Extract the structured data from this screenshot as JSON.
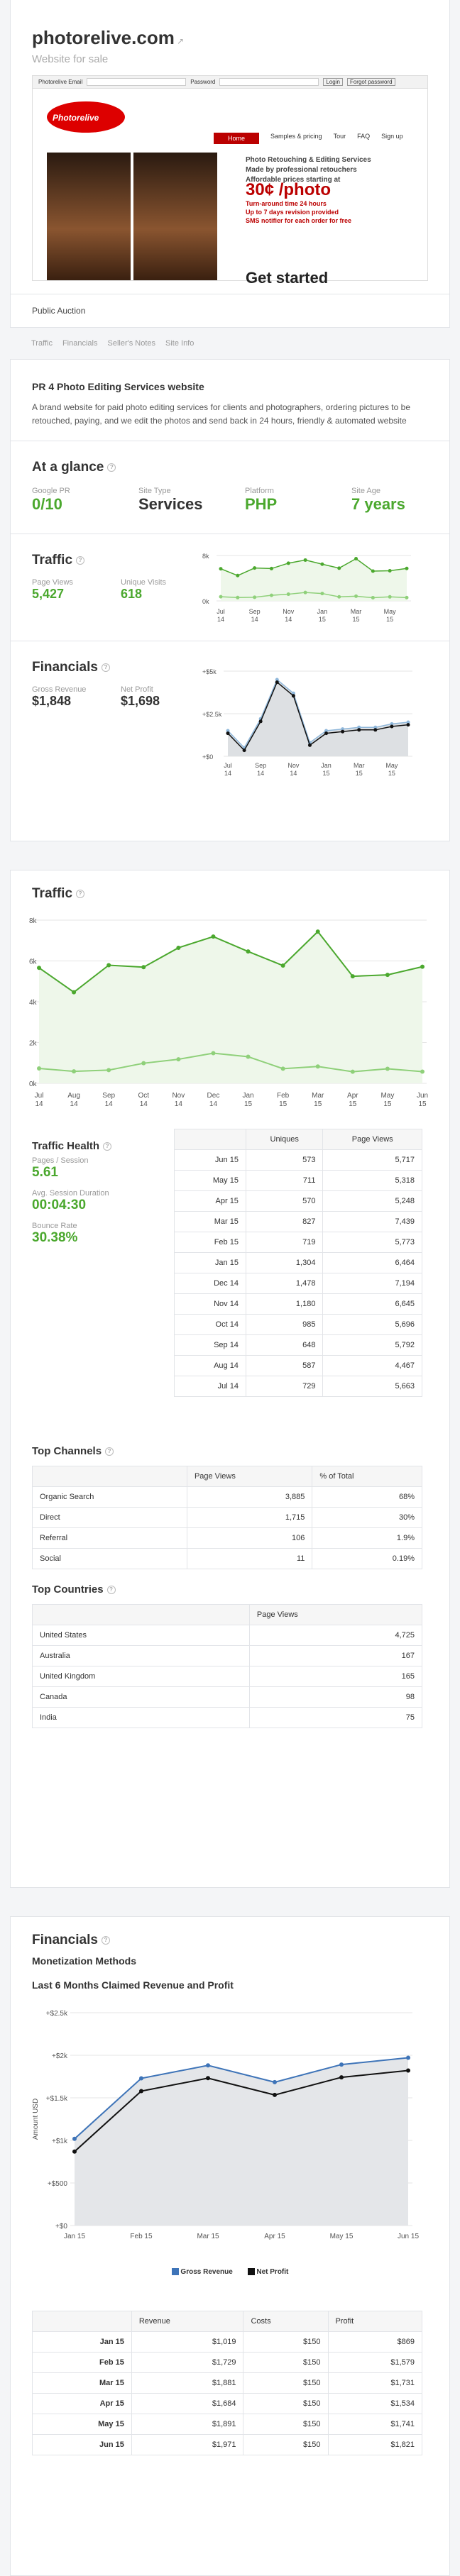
{
  "header": {
    "title": "photorelive.com",
    "subtitle": "Website for sale"
  },
  "preview": {
    "topbar_fields": [
      "Photorelive Email",
      "Password",
      "Login",
      "Forgot password"
    ],
    "logo": "Photorelive",
    "nav": [
      "Home",
      "Samples & pricing",
      "Tour",
      "FAQ",
      "Sign up"
    ],
    "headline_lines": [
      "Photo Retouching & Editing Services",
      "Made by professional retouchers",
      "Affordable prices starting at"
    ],
    "price": "30¢ /photo",
    "bullets": [
      "Turn-around time 24 hours",
      "Up to 7 days revision provided",
      "SMS notifier for each order for free"
    ],
    "get_started": "Get started"
  },
  "auction_label": "Public Auction",
  "tabs": [
    "Traffic",
    "Financials",
    "Seller's Notes",
    "Site Info"
  ],
  "description": {
    "title": "PR 4 Photo Editing Services website",
    "text": "A brand website for paid photo editing services for clients and photographers, ordering pictures to be retouched, paying, and we edit the photos and send back in 24 hours, friendly & automated website"
  },
  "glance": {
    "title": "At a glance",
    "items": [
      {
        "label": "Google PR",
        "value": "0/10"
      },
      {
        "label": "Site Type",
        "value": "Services"
      },
      {
        "label": "Platform",
        "value": "PHP"
      },
      {
        "label": "Site Age",
        "value": "7 years"
      }
    ]
  },
  "traffic_summary": {
    "title": "Traffic",
    "page_views_label": "Page Views",
    "page_views": "5,427",
    "unique_label": "Unique Visits",
    "unique": "618",
    "ytick_top": "8k",
    "ytick_bottom": "0k"
  },
  "fin_summary": {
    "title": "Financials",
    "gross_label": "Gross Revenue",
    "gross": "$1,848",
    "net_label": "Net Profit",
    "net": "$1,698",
    "yticks": [
      "+$5k",
      "+$2.5k",
      "+$0"
    ]
  },
  "x_months": [
    [
      "Jul",
      "14"
    ],
    [
      "Sep",
      "14"
    ],
    [
      "Nov",
      "14"
    ],
    [
      "Jan",
      "15"
    ],
    [
      "Mar",
      "15"
    ],
    [
      "May",
      "15"
    ]
  ],
  "x_months_full": [
    [
      "Jul",
      "14"
    ],
    [
      "Aug",
      "14"
    ],
    [
      "Sep",
      "14"
    ],
    [
      "Oct",
      "14"
    ],
    [
      "Nov",
      "14"
    ],
    [
      "Dec",
      "14"
    ],
    [
      "Jan",
      "15"
    ],
    [
      "Feb",
      "15"
    ],
    [
      "Mar",
      "15"
    ],
    [
      "Apr",
      "15"
    ],
    [
      "May",
      "15"
    ],
    [
      "Jun",
      "15"
    ]
  ],
  "traffic": {
    "title": "Traffic",
    "yticks": [
      "8k",
      "6k",
      "4k",
      "2k",
      "0k"
    ],
    "health_title": "Traffic Health",
    "pps_label": "Pages / Session",
    "pps": "5.61",
    "asd_label": "Avg. Session Duration",
    "asd": "00:04:30",
    "bounce_label": "Bounce Rate",
    "bounce": "30.38%",
    "table_headers": [
      "",
      "Uniques",
      "Page Views"
    ],
    "rows": [
      [
        "Jun 15",
        "573",
        "5,717"
      ],
      [
        "May 15",
        "711",
        "5,318"
      ],
      [
        "Apr 15",
        "570",
        "5,248"
      ],
      [
        "Mar 15",
        "827",
        "7,439"
      ],
      [
        "Feb 15",
        "719",
        "5,773"
      ],
      [
        "Jan 15",
        "1,304",
        "6,464"
      ],
      [
        "Dec 14",
        "1,478",
        "7,194"
      ],
      [
        "Nov 14",
        "1,180",
        "6,645"
      ],
      [
        "Oct 14",
        "985",
        "5,696"
      ],
      [
        "Sep 14",
        "648",
        "5,792"
      ],
      [
        "Aug 14",
        "587",
        "4,467"
      ],
      [
        "Jul 14",
        "729",
        "5,663"
      ]
    ]
  },
  "channels": {
    "title": "Top Channels",
    "headers": [
      "",
      "Page Views",
      "% of Total"
    ],
    "rows": [
      [
        "Organic Search",
        "3,885",
        "68%"
      ],
      [
        "Direct",
        "1,715",
        "30%"
      ],
      [
        "Referral",
        "106",
        "1.9%"
      ],
      [
        "Social",
        "11",
        "0.19%"
      ]
    ]
  },
  "countries": {
    "title": "Top Countries",
    "headers": [
      "",
      "Page Views"
    ],
    "rows": [
      [
        "United States",
        "4,725"
      ],
      [
        "Australia",
        "167"
      ],
      [
        "United Kingdom",
        "165"
      ],
      [
        "Canada",
        "98"
      ],
      [
        "India",
        "75"
      ]
    ]
  },
  "financials": {
    "title": "Financials",
    "monetization": "Monetization Methods",
    "chart_title": "Last 6 Months Claimed Revenue and Profit",
    "ylabel": "Amount USD",
    "yticks": [
      "+$2.5k",
      "+$2k",
      "+$1.5k",
      "+$1k",
      "+$500",
      "+$0"
    ],
    "xticks": [
      "Jan 15",
      "Feb 15",
      "Mar 15",
      "Apr 15",
      "May 15",
      "Jun 15"
    ],
    "legend": [
      "Gross Revenue",
      "Net Profit"
    ],
    "headers": [
      "",
      "Revenue",
      "Costs",
      "Profit"
    ],
    "rows": [
      [
        "Jan 15",
        "$1,019",
        "$150",
        "$869"
      ],
      [
        "Feb 15",
        "$1,729",
        "$150",
        "$1,579"
      ],
      [
        "Mar 15",
        "$1,881",
        "$150",
        "$1,731"
      ],
      [
        "Apr 15",
        "$1,684",
        "$150",
        "$1,534"
      ],
      [
        "May 15",
        "$1,891",
        "$150",
        "$1,741"
      ],
      [
        "Jun 15",
        "$1,971",
        "$150",
        "$1,821"
      ]
    ]
  },
  "chart_data": [
    {
      "type": "line",
      "title": "",
      "x": [
        "Jul 14",
        "Aug 14",
        "Sep 14",
        "Oct 14",
        "Nov 14",
        "Dec 14",
        "Jan 15",
        "Feb 15",
        "Mar 15",
        "Apr 15",
        "May 15",
        "Jun 15"
      ],
      "ylim": [
        0,
        8000
      ],
      "series": [
        {
          "name": "Page Views",
          "values": [
            5663,
            4467,
            5792,
            5696,
            6645,
            7194,
            6464,
            5773,
            7439,
            5248,
            5318,
            5717
          ]
        },
        {
          "name": "Uniques",
          "values": [
            729,
            587,
            648,
            985,
            1180,
            1478,
            1304,
            719,
            827,
            570,
            711,
            573
          ]
        }
      ]
    },
    {
      "type": "line",
      "title": "",
      "x": [
        "Jul 14",
        "Aug 14",
        "Sep 14",
        "Oct 14",
        "Nov 14",
        "Dec 14",
        "Jan 15",
        "Feb 15",
        "Mar 15",
        "Apr 15",
        "May 15",
        "Jun 15"
      ],
      "ylim": [
        0,
        5000
      ],
      "series": [
        {
          "name": "Gross Revenue",
          "values": [
            1500,
            500,
            2200,
            4500,
            3700,
            800,
            1500,
            1600,
            1700,
            1700,
            1900,
            2000
          ]
        },
        {
          "name": "Net Profit",
          "values": [
            1350,
            350,
            2050,
            4350,
            3550,
            650,
            1350,
            1450,
            1550,
            1550,
            1750,
            1850
          ]
        }
      ]
    },
    {
      "type": "line",
      "title": "Last 6 Months Claimed Revenue and Profit",
      "x": [
        "Jan 15",
        "Feb 15",
        "Mar 15",
        "Apr 15",
        "May 15",
        "Jun 15"
      ],
      "ylabel": "Amount USD",
      "ylim": [
        0,
        2500
      ],
      "series": [
        {
          "name": "Gross Revenue",
          "values": [
            1019,
            1729,
            1881,
            1684,
            1891,
            1971
          ]
        },
        {
          "name": "Net Profit",
          "values": [
            869,
            1579,
            1731,
            1534,
            1741,
            1821
          ]
        }
      ]
    }
  ]
}
